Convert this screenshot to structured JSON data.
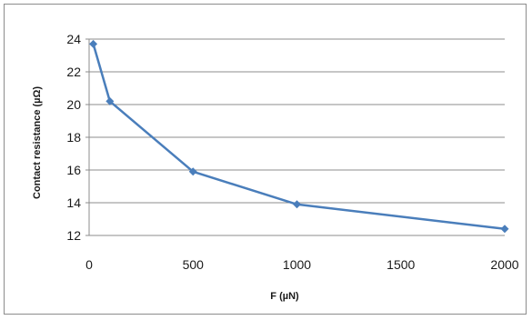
{
  "chart_data": {
    "type": "line",
    "title": "",
    "xlabel": "F (µN)",
    "ylabel": "Contact resistance (µΩ)",
    "xlim": [
      0,
      2000
    ],
    "ylim": [
      12,
      24
    ],
    "xticks": [
      0,
      500,
      1000,
      1500,
      2000
    ],
    "yticks": [
      12,
      14,
      16,
      18,
      20,
      22,
      24
    ],
    "grid": "horizontal",
    "legend": "none",
    "series": [
      {
        "color": "#4a7ebb",
        "x": [
          20,
          100,
          500,
          1000,
          2000
        ],
        "y": [
          23.7,
          20.2,
          15.9,
          13.9,
          12.4
        ]
      }
    ]
  }
}
